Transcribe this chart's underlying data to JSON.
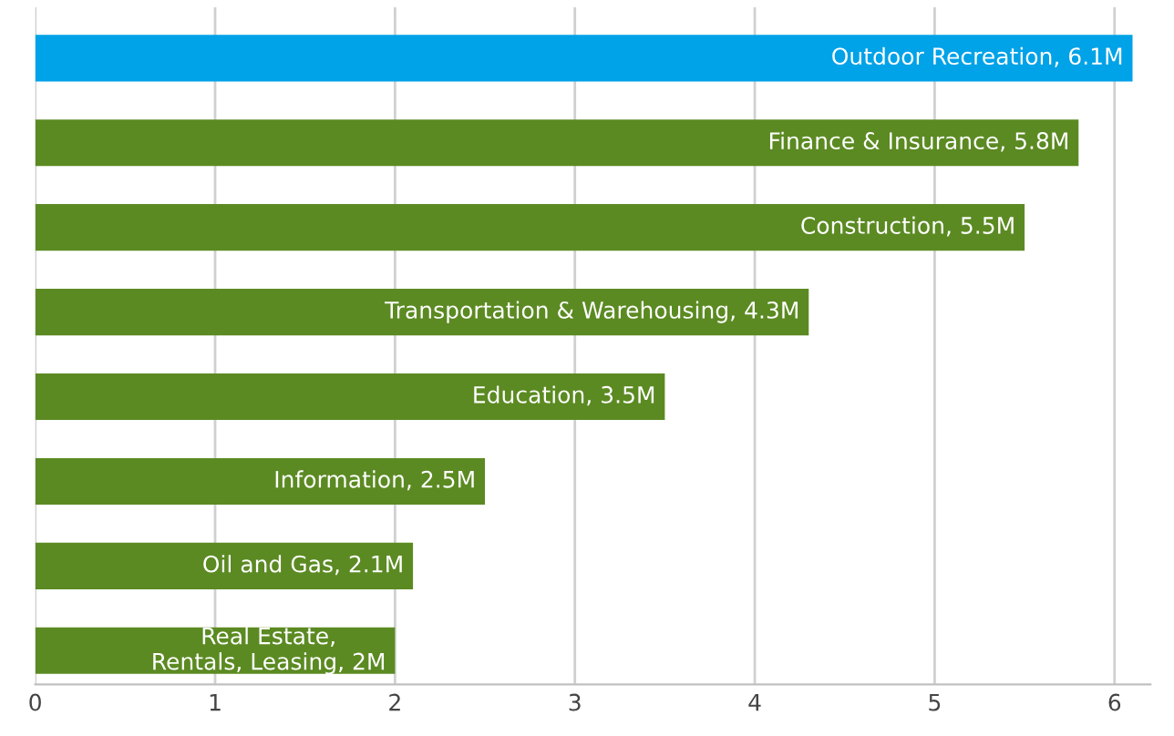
{
  "chart_data": {
    "type": "bar",
    "orientation": "horizontal",
    "categories": [
      null,
      null,
      null,
      null,
      null,
      null,
      null,
      null
    ],
    "values": [
      6.1,
      5.8,
      5.5,
      4.3,
      3.5,
      2.5,
      2.1,
      2
    ],
    "colors": [
      "#00a2e8",
      "#5b8a22",
      "#5b8a22",
      "#5b8a22",
      "#5b8a22",
      "#5b8a22",
      "#5b8a22",
      "#5b8a22"
    ],
    "value_labels": [
      "Outdoor Recreation, 6.1M",
      "Finance & Insurance, 5.8M",
      "Construction, 5.5M",
      "Transportation & Warehousing, 4.3M",
      "Education, 3.5M",
      "Information, 2.5M",
      "Oil and Gas, 2.1M",
      "Real Estate, Rentals, Leasing, 2M"
    ],
    "xlim": [
      0,
      6.2
    ],
    "xticks": [
      0,
      1,
      2,
      3,
      4,
      5,
      6
    ],
    "grid": "x",
    "tick_labels": "x"
  }
}
